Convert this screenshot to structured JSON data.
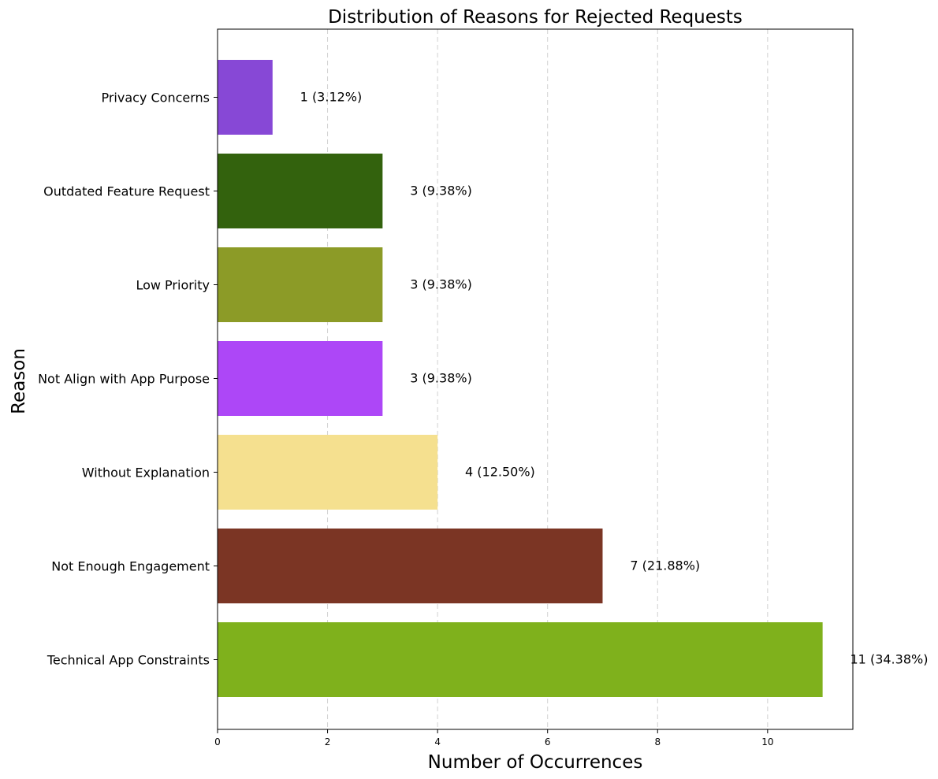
{
  "chart_data": {
    "type": "bar",
    "orientation": "horizontal",
    "title": "Distribution of Reasons for Rejected Requests",
    "xlabel": "Number of Occurrences",
    "ylabel": "Reason",
    "categories": [
      "Technical App Constraints",
      "Not Enough Engagement",
      "Without Explanation",
      "Not Align with App Purpose",
      "Low Priority",
      "Outdated Feature Request",
      "Privacy Concerns"
    ],
    "values": [
      11,
      7,
      4,
      3,
      3,
      3,
      1
    ],
    "labels": [
      "11 (34.38%)",
      "7 (21.88%)",
      "4 (12.50%)",
      "3 (9.38%)",
      "3 (9.38%)",
      "3 (9.38%)",
      "1 (3.12%)"
    ],
    "colors": [
      "#7fb11c",
      "#7b3524",
      "#f5e08f",
      "#ad47f7",
      "#8c9b27",
      "#33620d",
      "#8748d6"
    ],
    "xlim": [
      0,
      11.55
    ],
    "xticks": [
      0,
      2,
      4,
      6,
      8,
      10
    ],
    "grid": "x-dashed",
    "legend": "none"
  }
}
